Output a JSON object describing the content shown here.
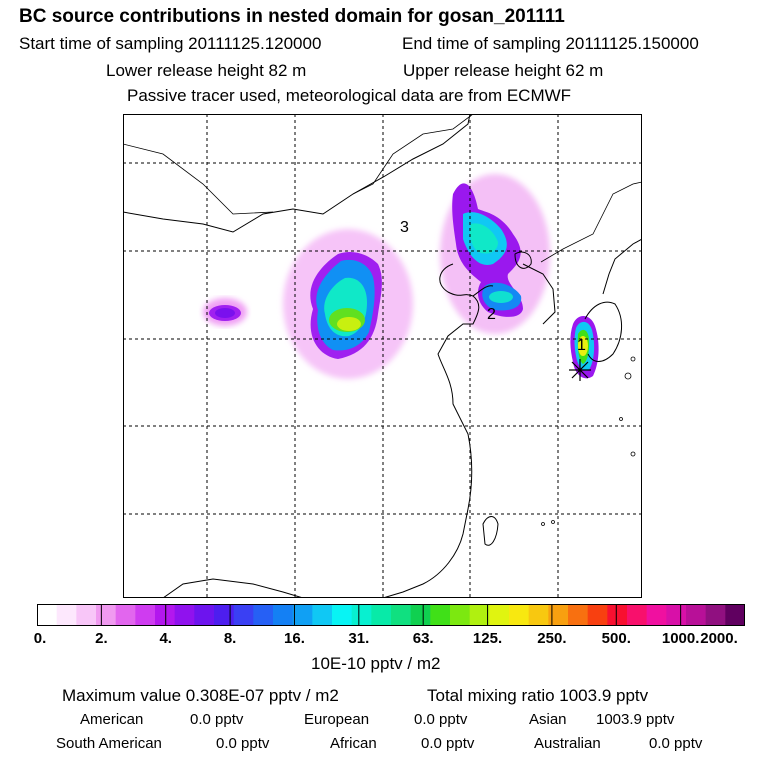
{
  "header": {
    "title": "BC  source contributions in nested domain for gosan_201111",
    "start": "Start time of sampling 20111125.120000",
    "end": "End time of sampling 20111125.150000",
    "lower": "Lower release height   82 m",
    "upper": "Upper release height   62 m",
    "note": "Passive tracer used, meteorological data are from ECMWF"
  },
  "map": {
    "labels": [
      "3",
      "2",
      "1"
    ],
    "receptor_marker": "star-icon"
  },
  "colorbar": {
    "ticks": [
      "0.",
      "2.",
      "4.",
      "8.",
      "16.",
      "31.",
      "63.",
      "125.",
      "250.",
      "500.",
      "1000.",
      "2000."
    ],
    "colors": [
      "#ffffff",
      "#fde8fd",
      "#f8c6f8",
      "#f09af0",
      "#e266ee",
      "#cf3cf0",
      "#b317ee",
      "#9012ee",
      "#6d14ee",
      "#4d1eef",
      "#3a40f3",
      "#2660f5",
      "#1480f4",
      "#10a0f4",
      "#10c8f4",
      "#08f4f4",
      "#08f0d0",
      "#08eaa8",
      "#10e080",
      "#10d050",
      "#40e018",
      "#7ce810",
      "#b0f010",
      "#e0f410",
      "#f8e810",
      "#f8c810",
      "#f8a010",
      "#f87010",
      "#f84010",
      "#f81030",
      "#f8106c",
      "#f010a0",
      "#d810a8",
      "#b81098",
      "#901080",
      "#600060"
    ],
    "units": "10E-10 pptv / m2"
  },
  "stats": {
    "max": "Maximum value  0.308E-07 pptv / m2",
    "total": "Total mixing ratio     1003.9 pptv",
    "regions": [
      {
        "name": "American",
        "value": "0.0 pptv"
      },
      {
        "name": "European",
        "value": "0.0 pptv"
      },
      {
        "name": "Asian",
        "value": "1003.9 pptv"
      },
      {
        "name": "South American",
        "value": "0.0 pptv"
      },
      {
        "name": "African",
        "value": "0.0 pptv"
      },
      {
        "name": "Australian",
        "value": "0.0 pptv"
      }
    ]
  }
}
